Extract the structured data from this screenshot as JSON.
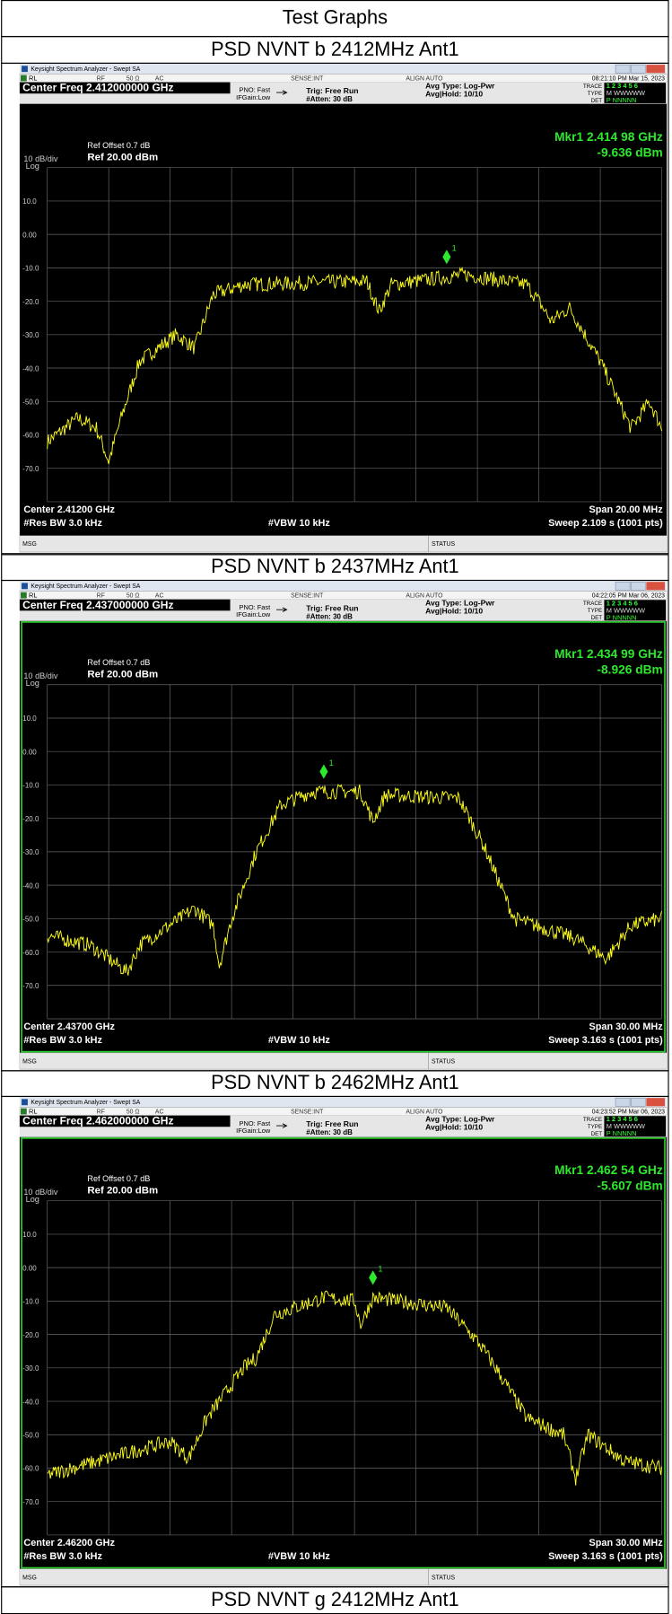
{
  "title": "Test Graphs",
  "sections": [
    {
      "caption": "PSD NVNT b 2412MHz Ant1",
      "screen": {
        "app_title": "Keysight Spectrum Analyzer - Swept SA",
        "rl": "RL",
        "rf": "RF",
        "impedance": "50 Ω",
        "coupling": "AC",
        "sense": "SENSE:INT",
        "align": "ALIGN AUTO",
        "timestamp": "08:21:10 PM Mar 15, 2023",
        "center_freq": "Center Freq 2.412000000 GHz",
        "pno": "PNO: Fast",
        "ifgain": "IFGain:Low",
        "trig": "Trig: Free Run",
        "atten": "#Atten: 30 dB",
        "avg_type": "Avg Type: Log-Pwr",
        "avg_hold": "Avg|Hold: 10/10",
        "trace_label": "TRACE",
        "trace_nums": "1 2 3 4 5 6",
        "type_label": "TYPE",
        "type_vals": "M WWWWW",
        "det_label": "DET",
        "det_vals": "P NNNNN",
        "ref_offset": "Ref Offset 0.7 dB",
        "ref_level": "Ref 20.00 dBm",
        "scale_div": "10 dB/div",
        "scale_type": "Log",
        "marker": "Mkr1 2.414 98 GHz",
        "marker_level": "-9.636 dBm",
        "marker_id": "1",
        "scale_labels": [
          "10.0",
          "0.00",
          "-10.0",
          "-20.0",
          "-30.0",
          "-40.0",
          "-50.0",
          "-60.0",
          "-70.0"
        ],
        "center": "Center 2.41200 GHz",
        "span": "Span 20.00 MHz",
        "rbw": "#Res BW 3.0 kHz",
        "vbw": "#VBW 10 kHz",
        "sweep": "Sweep  2.109 s (1001 pts)",
        "msg": "MSG",
        "status": "STATUS"
      }
    },
    {
      "caption": "PSD NVNT b 2437MHz Ant1",
      "screen": {
        "app_title": "Keysight Spectrum Analyzer - Swept SA",
        "rl": "RL",
        "rf": "RF",
        "impedance": "50 Ω",
        "coupling": "AC",
        "sense": "SENSE:INT",
        "align": "ALIGN AUTO",
        "timestamp": "04:22:05 PM Mar 06, 2023",
        "center_freq": "Center Freq 2.437000000 GHz",
        "pno": "PNO: Fast",
        "ifgain": "IFGain:Low",
        "trig": "Trig: Free Run",
        "atten": "#Atten: 30 dB",
        "avg_type": "Avg Type: Log-Pwr",
        "avg_hold": "Avg|Hold: 10/10",
        "trace_label": "TRACE",
        "trace_nums": "1 2 3 4 5 6",
        "type_label": "TYPE",
        "type_vals": "M WWWWW",
        "det_label": "DET",
        "det_vals": "P NNNNN",
        "ref_offset": "Ref Offset 0.7 dB",
        "ref_level": "Ref 20.00 dBm",
        "scale_div": "10 dB/div",
        "scale_type": "Log",
        "marker": "Mkr1 2.434 99 GHz",
        "marker_level": "-8.926 dBm",
        "marker_id": "1",
        "scale_labels": [
          "10.0",
          "0.00",
          "-10.0",
          "-20.0",
          "-30.0",
          "-40.0",
          "-50.0",
          "-60.0",
          "-70.0"
        ],
        "center": "Center 2.43700 GHz",
        "span": "Span 30.00 MHz",
        "rbw": "#Res BW 3.0 kHz",
        "vbw": "#VBW 10 kHz",
        "sweep": "Sweep  3.163 s (1001 pts)",
        "msg": "MSG",
        "status": "STATUS"
      }
    },
    {
      "caption": "PSD NVNT b 2462MHz Ant1",
      "screen": {
        "app_title": "Keysight Spectrum Analyzer - Swept SA",
        "rl": "RL",
        "rf": "RF",
        "impedance": "50 Ω",
        "coupling": "AC",
        "sense": "SENSE:INT",
        "align": "ALIGN AUTO",
        "timestamp": "04:23:52 PM Mar 06, 2023",
        "center_freq": "Center Freq 2.462000000 GHz",
        "pno": "PNO: Fast",
        "ifgain": "IFGain:Low",
        "trig": "Trig: Free Run",
        "atten": "#Atten: 30 dB",
        "avg_type": "Avg Type: Log-Pwr",
        "avg_hold": "Avg|Hold: 10/10",
        "trace_label": "TRACE",
        "trace_nums": "1 2 3 4 5 6",
        "type_label": "TYPE",
        "type_vals": "M WWWWW",
        "det_label": "DET",
        "det_vals": "P NNNNN",
        "ref_offset": "Ref Offset 0.7 dB",
        "ref_level": "Ref 20.00 dBm",
        "scale_div": "10 dB/div",
        "scale_type": "Log",
        "marker": "Mkr1 2.462 54 GHz",
        "marker_level": "-5.607 dBm",
        "marker_id": "1",
        "scale_labels": [
          "10.0",
          "0.00",
          "-10.0",
          "-20.0",
          "-30.0",
          "-40.0",
          "-50.0",
          "-60.0",
          "-70.0"
        ],
        "center": "Center 2.46200 GHz",
        "span": "Span 30.00 MHz",
        "rbw": "#Res BW 3.0 kHz",
        "vbw": "#VBW 10 kHz",
        "sweep": "Sweep  3.163 s (1001 pts)",
        "msg": "MSG",
        "status": "STATUS"
      }
    },
    {
      "caption": "PSD NVNT g 2412MHz Ant1"
    }
  ]
}
